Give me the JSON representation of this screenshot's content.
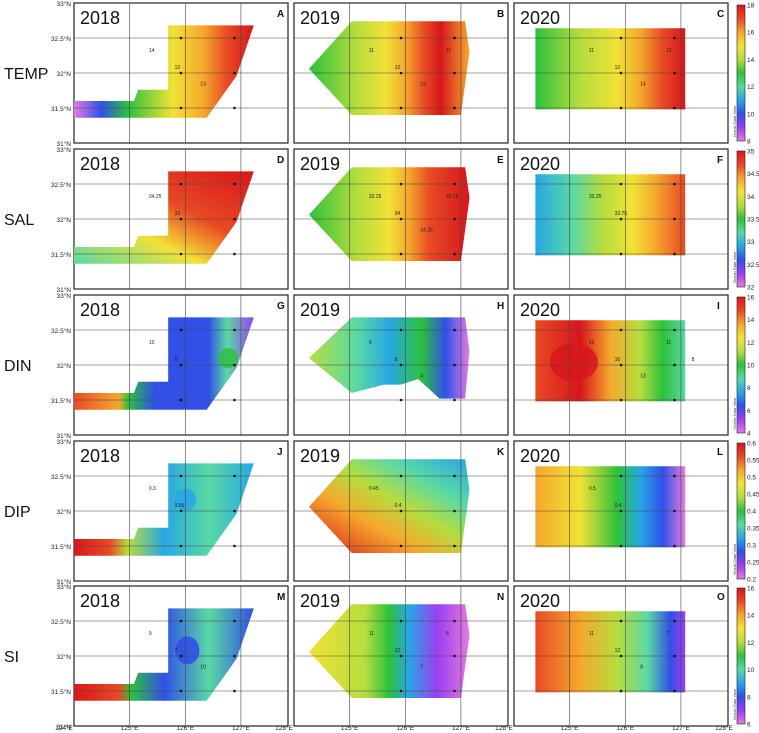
{
  "colors": {
    "ramp": [
      "#e47be0",
      "#9a3ff0",
      "#3050e8",
      "#27a7e6",
      "#59d9a4",
      "#2cc13c",
      "#b6dd3e",
      "#f2e236",
      "#f5a82c",
      "#e84a24",
      "#d8161c"
    ],
    "odv_note": "Ocean Data View"
  },
  "row_labels": [
    "TEMP",
    "SAL",
    "DIN",
    "DIP",
    "SI"
  ],
  "years": [
    "2018",
    "2019",
    "2020"
  ],
  "panel_letters": [
    "A",
    "B",
    "C",
    "D",
    "E",
    "F",
    "G",
    "H",
    "I",
    "J",
    "K",
    "L",
    "M",
    "N",
    "O"
  ],
  "lat_ticks": [
    "33°N",
    "32.5°N",
    "32°N",
    "31.5°N",
    "31°N"
  ],
  "bottom_ticks": [
    "124°E",
    "125°E",
    "126°E",
    "127°E",
    "128°E",
    "125°E",
    "126°E",
    "127°E",
    "128°E",
    "125°E",
    "126°E",
    "127°E",
    "128°E"
  ],
  "colorbars": [
    {
      "name": "TEMP",
      "ticks": [
        "18",
        "16",
        "14",
        "12",
        "10",
        "8"
      ]
    },
    {
      "name": "SAL",
      "ticks": [
        "35",
        "34.5",
        "34",
        "33.5",
        "33",
        "32.5",
        "32"
      ]
    },
    {
      "name": "DIN",
      "ticks": [
        "16",
        "14",
        "12",
        "10",
        "8",
        "6",
        "4"
      ]
    },
    {
      "name": "DIP",
      "ticks": [
        "0.6",
        "0.55",
        "0.5",
        "0.45",
        "0.4",
        "0.35",
        "0.3",
        "0.25",
        "0.2"
      ]
    },
    {
      "name": "SI",
      "ticks": [
        "16",
        "14",
        "12",
        "10",
        "8",
        "6"
      ]
    }
  ],
  "contour_labels": {
    "A": [
      "14",
      "12",
      "13"
    ],
    "B": [
      "11",
      "12",
      "13",
      "11"
    ],
    "C": [
      "11",
      "12",
      "14",
      "13"
    ],
    "D": [
      "34.25",
      "33"
    ],
    "E": [
      "33.25",
      "34",
      "34.25",
      "33.75"
    ],
    "F": [
      "33.25",
      "33.75"
    ],
    "G": [
      "10",
      "8"
    ],
    "H": [
      "6",
      "8",
      "4"
    ],
    "I": [
      "12",
      "10",
      "13",
      "11",
      "8"
    ],
    "J": [
      "0.3",
      "0.55"
    ],
    "K": [
      "0.45",
      "0.4"
    ],
    "L": [
      "0.5",
      "0.4"
    ],
    "M": [
      "9",
      "7",
      "10"
    ],
    "N": [
      "11",
      "12",
      "7",
      "8"
    ],
    "O": [
      "11",
      "12",
      "8",
      "7"
    ]
  },
  "chart_data": {
    "type": "heatmap",
    "title": "",
    "xlabel": "",
    "ylabel": "",
    "xlim": [
      124,
      128
    ],
    "ylim": [
      31,
      33
    ],
    "x_ticks": [
      "124°E",
      "125°E",
      "126°E",
      "127°E",
      "128°E"
    ],
    "y_ticks": [
      "33°N",
      "32.5°N",
      "32°N",
      "31.5°N",
      "31°N"
    ],
    "rows": [
      "TEMP",
      "SAL",
      "DIN",
      "DIP",
      "SI"
    ],
    "columns": [
      "2018",
      "2019",
      "2020"
    ],
    "colorbar_ranges": {
      "TEMP": [
        8,
        18
      ],
      "SAL": [
        32,
        35
      ],
      "DIN": [
        4,
        16
      ],
      "DIP": [
        0.2,
        0.6
      ],
      "SI": [
        6,
        16
      ]
    }
  }
}
